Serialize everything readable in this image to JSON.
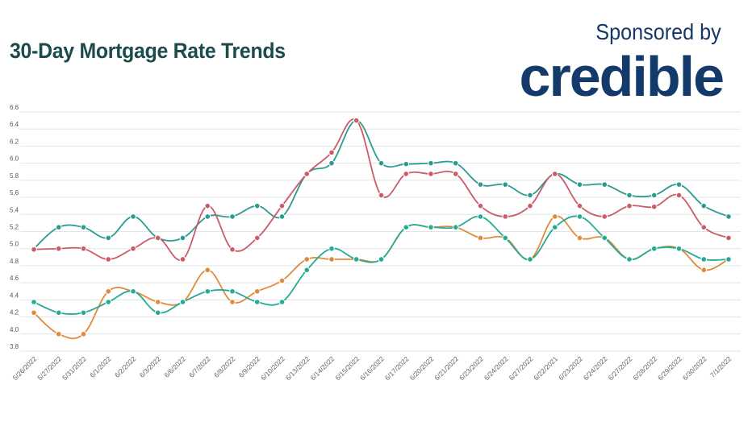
{
  "header": {
    "title": "30-Day Mortgage Rate Trends",
    "sponsor_label": "Sponsored by",
    "sponsor_brand": "credible"
  },
  "colors": {
    "title": "#1c4b4b",
    "brand": "#133a6b",
    "series": [
      "#2b9b90",
      "#cc5a68",
      "#e08a3c",
      "#25ab93"
    ]
  },
  "chart_data": {
    "type": "line",
    "title": "30-Day Mortgage Rate Trends",
    "xlabel": "",
    "ylabel": "",
    "ylim": [
      3.8,
      6.6
    ],
    "yticks": [
      3.8,
      4.0,
      4.2,
      4.4,
      4.6,
      4.8,
      5.0,
      5.2,
      5.4,
      5.6,
      5.8,
      6.0,
      6.2,
      6.4,
      6.6
    ],
    "grid": true,
    "legend": "none",
    "categories": [
      "5/26/2022",
      "5/27/2022",
      "5/31/2022",
      "6/1/2022",
      "6/2/2022",
      "6/3/2022",
      "6/6/2022",
      "6/7/2022",
      "6/8/2022",
      "6/9/2022",
      "6/10/2022",
      "6/13/2022",
      "6/14/2022",
      "6/15/2022",
      "6/16/2022",
      "6/17/2022",
      "6/20/2022",
      "6/21/2022",
      "6/23/2022",
      "6/24/2022",
      "6/27/2022",
      "6/22/2021",
      "6/23/2022",
      "6/24/2022",
      "6/27/2022",
      "6/28/2022",
      "6/29/2022",
      "6/30/2022",
      "7/1/2022"
    ],
    "series": [
      {
        "values": [
          5.0,
          5.25,
          5.25,
          5.125,
          5.375,
          5.125,
          5.125,
          5.375,
          5.375,
          5.5,
          5.375,
          5.875,
          6.0,
          6.5,
          6.0,
          5.99,
          6.0,
          6.0,
          5.75,
          5.75,
          5.625,
          5.875,
          5.75,
          5.75,
          5.625,
          5.625,
          5.75,
          5.5,
          5.375
        ]
      },
      {
        "values": [
          4.99,
          5.0,
          5.0,
          4.875,
          5.0,
          5.125,
          4.875,
          5.5,
          4.99,
          5.125,
          5.5,
          5.875,
          6.125,
          6.5,
          5.625,
          5.875,
          5.875,
          5.875,
          5.5,
          5.375,
          5.5,
          5.875,
          5.5,
          5.375,
          5.5,
          5.49,
          5.625,
          5.25,
          5.125
        ]
      },
      {
        "values": [
          4.25,
          4.0,
          4.0,
          4.5,
          4.5,
          4.375,
          4.375,
          4.75,
          4.375,
          4.5,
          4.625,
          4.875,
          4.875,
          4.875,
          4.875,
          5.25,
          5.25,
          5.25,
          5.125,
          5.125,
          4.875,
          5.375,
          5.125,
          5.125,
          4.875,
          5.0,
          5.0,
          4.75,
          4.875
        ]
      },
      {
        "values": [
          4.375,
          4.25,
          4.25,
          4.375,
          4.5,
          4.25,
          4.375,
          4.5,
          4.5,
          4.375,
          4.375,
          4.75,
          5.0,
          4.875,
          4.875,
          5.25,
          5.25,
          5.25,
          5.375,
          5.125,
          4.875,
          5.25,
          5.375,
          5.125,
          4.875,
          5.0,
          5.0,
          4.875,
          4.875
        ]
      }
    ]
  }
}
